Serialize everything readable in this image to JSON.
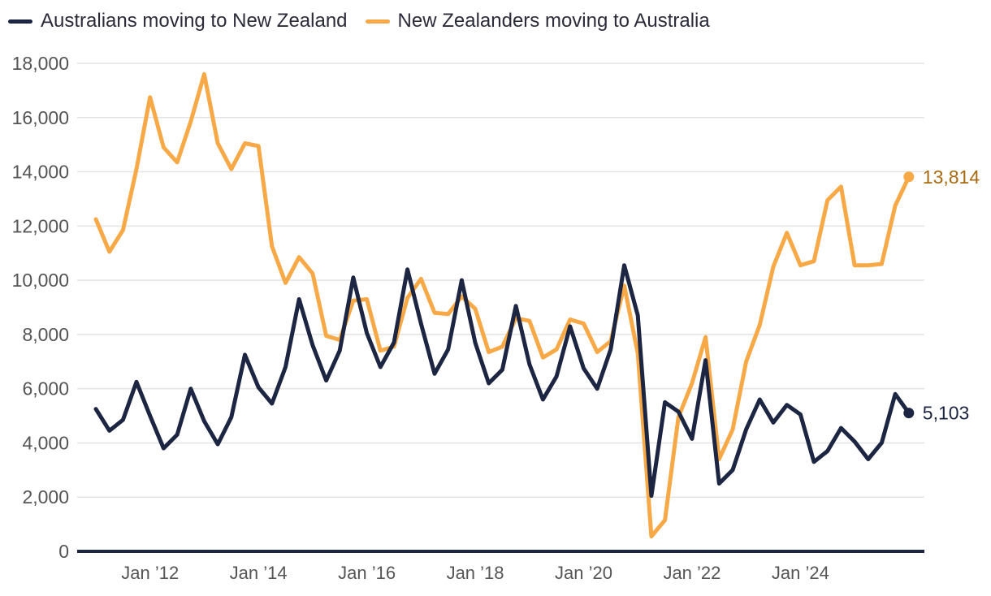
{
  "chart_data": {
    "type": "line",
    "colors": {
      "aus_to_nz": "#1c2541",
      "nz_to_aus": "#f7a947",
      "nz_label": "#a86a10",
      "grid": "#e3e3e3",
      "axis": "#1c2541",
      "tick": "#555555"
    },
    "ylim": [
      0,
      18000
    ],
    "y_ticks": [
      0,
      2000,
      4000,
      6000,
      8000,
      10000,
      12000,
      14000,
      16000,
      18000
    ],
    "y_tick_labels": [
      "0",
      "2,000",
      "4,000",
      "6,000",
      "8,000",
      "10,000",
      "12,000",
      "14,000",
      "16,000",
      "18,000"
    ],
    "x_ticks": [
      4,
      12,
      20,
      28,
      36,
      44,
      52
    ],
    "x_tick_labels": [
      "Jan ’12",
      "Jan ’14",
      "Jan ’16",
      "Jan ’18",
      "Jan ’20",
      "Jan ’22",
      "Jan ’24"
    ],
    "series": [
      {
        "name": "Australians moving to New Zealand",
        "key": "aus_to_nz",
        "values": [
          5250,
          4450,
          4850,
          6250,
          5000,
          3800,
          4300,
          6000,
          4800,
          3950,
          4950,
          7250,
          6050,
          5450,
          6800,
          9300,
          7600,
          6300,
          7400,
          10100,
          8050,
          6800,
          7700,
          10400,
          8400,
          6550,
          7450,
          10000,
          7700,
          6200,
          6700,
          9050,
          6900,
          5600,
          6450,
          8300,
          6750,
          6000,
          7450,
          10550,
          8700,
          2050,
          5500,
          5150,
          4150,
          7050,
          2500,
          3000,
          4500,
          5600,
          4750,
          5400,
          5050,
          3300,
          3700,
          4550,
          4050,
          3400,
          4000,
          5800,
          5103
        ],
        "end_label": "5,103"
      },
      {
        "name": "New Zealanders moving to Australia",
        "key": "nz_to_aus",
        "values": [
          12250,
          11050,
          11850,
          14100,
          16750,
          14900,
          14350,
          15850,
          17600,
          15050,
          14100,
          15050,
          14950,
          11250,
          9900,
          10850,
          10250,
          7950,
          7800,
          9250,
          9300,
          7400,
          7550,
          9350,
          10050,
          8800,
          8750,
          9400,
          8950,
          7350,
          7550,
          8600,
          8500,
          7150,
          7450,
          8550,
          8400,
          7350,
          7750,
          9800,
          7300,
          550,
          1150,
          4950,
          6200,
          7900,
          3400,
          4500,
          7000,
          8350,
          10500,
          11750,
          10550,
          10700,
          12950,
          13450,
          10550,
          10550,
          10600,
          12750,
          13814
        ],
        "end_label": "13,814"
      }
    ]
  }
}
